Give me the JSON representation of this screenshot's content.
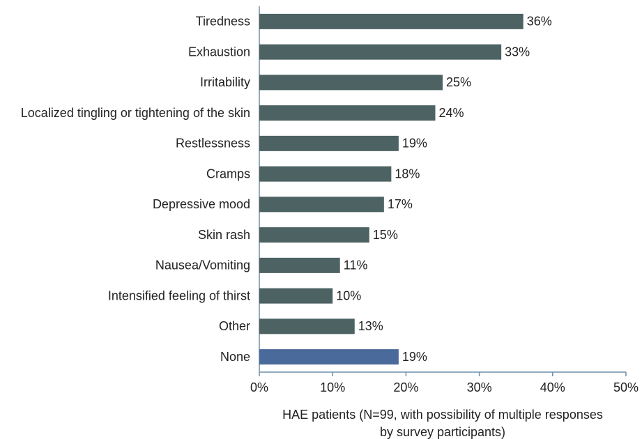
{
  "chart_data": {
    "type": "barh",
    "categories": [
      "Tiredness",
      "Exhaustion",
      "Irritability",
      "Localized tingling or tightening of the skin",
      "Restlessness",
      "Cramps",
      "Depressive mood",
      "Skin rash",
      "Nausea/Vomiting",
      "Intensified feeling of thirst",
      "Other",
      "None"
    ],
    "values": [
      36,
      33,
      25,
      24,
      19,
      18,
      17,
      15,
      11,
      10,
      13,
      19
    ],
    "value_labels": [
      "36%",
      "33%",
      "25%",
      "24%",
      "19%",
      "18%",
      "17%",
      "15%",
      "11%",
      "10%",
      "13%",
      "19%"
    ],
    "colors": [
      "#4d6262",
      "#4d6262",
      "#4d6262",
      "#4d6262",
      "#4d6262",
      "#4d6262",
      "#4d6262",
      "#4d6262",
      "#4d6262",
      "#4d6262",
      "#4d6262",
      "#4a6a9b"
    ],
    "xlim": [
      0,
      50
    ],
    "xticks": [
      {
        "value": 0,
        "label": "0%"
      },
      {
        "value": 10,
        "label": "10%"
      },
      {
        "value": 20,
        "label": "20%"
      },
      {
        "value": 30,
        "label": "30%"
      },
      {
        "value": 40,
        "label": "40%"
      },
      {
        "value": 50,
        "label": "50%"
      }
    ],
    "xlabel": "HAE patients (N=99, with possibility of multiple responses by survey participants)"
  }
}
